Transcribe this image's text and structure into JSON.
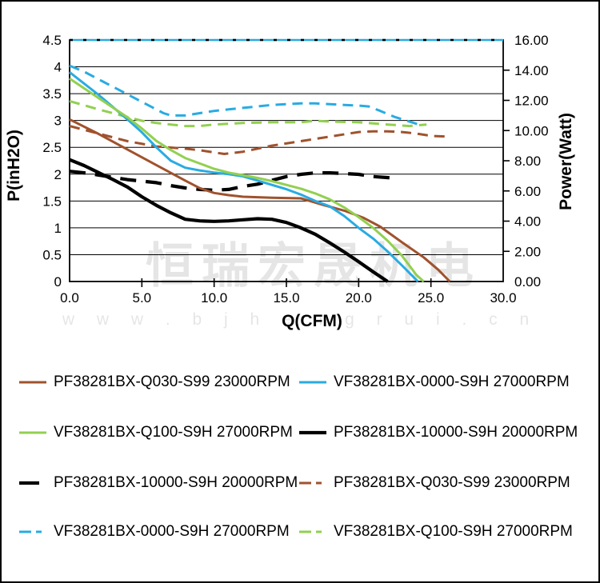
{
  "watermark": {
    "brand": "恒瑞宏晟机电",
    "url": "w w w . b j h e n g r u i . c n"
  },
  "chart_data": {
    "type": "line",
    "title": "",
    "grid": "horizontal",
    "x_axis": {
      "label": "Q(CFM)",
      "min": 0,
      "max": 30,
      "tick_labels": [
        "0.0",
        "5.0",
        "10.0",
        "15.0",
        "20.0",
        "25.0",
        "30.0"
      ]
    },
    "y_axis_left": {
      "label": "P(inH2O)",
      "min": 0,
      "max": 4.5,
      "tick_labels": [
        "0",
        "0.5",
        "1",
        "1.5",
        "2",
        "2.5",
        "3",
        "3.5",
        "4",
        "4.5"
      ]
    },
    "y_axis_right": {
      "label": "Power(Watt)",
      "min": 0,
      "max": 16,
      "tick_labels": [
        "0.00",
        "2.00",
        "4.00",
        "6.00",
        "8.00",
        "10.00",
        "12.00",
        "14.00",
        "16.00"
      ]
    },
    "series": [
      {
        "id": "power-limit-line",
        "name": "power limit 16.00W",
        "curve": "Power-Limit",
        "axis": "right",
        "color": "#29ABE2",
        "line": "limit",
        "x": [
          0,
          30
        ],
        "y": [
          16,
          16
        ]
      },
      {
        "id": "power-vf0000",
        "name": "VF38281BX-0000-S9H 27000RPM",
        "curve": "Power",
        "axis": "right",
        "color": "#29ABE2",
        "line": "dashed",
        "x": [
          0,
          1,
          2,
          3,
          4,
          5,
          6,
          6.5,
          7,
          8,
          9,
          10,
          11,
          12,
          13,
          14,
          15,
          16,
          17,
          18,
          19,
          20,
          20.7,
          21.5,
          22.5,
          23.5,
          24.3
        ],
        "y": [
          14.3,
          13.9,
          13.4,
          12.9,
          12.4,
          11.9,
          11.4,
          11.15,
          11.0,
          11.0,
          11.15,
          11.3,
          11.4,
          11.5,
          11.6,
          11.7,
          11.75,
          11.8,
          11.8,
          11.75,
          11.7,
          11.65,
          11.6,
          11.3,
          10.9,
          10.6,
          10.35
        ]
      },
      {
        "id": "power-vfq100",
        "name": "VF38281BX-Q100-S9H 27000RPM",
        "curve": "Power",
        "axis": "right",
        "color": "#92D050",
        "line": "dashed",
        "x": [
          0,
          2,
          4,
          5,
          6,
          7,
          8,
          9,
          10,
          12,
          14,
          16,
          17,
          18,
          20,
          22,
          23.5,
          24.7
        ],
        "y": [
          11.95,
          11.4,
          10.9,
          10.65,
          10.5,
          10.4,
          10.3,
          10.3,
          10.4,
          10.5,
          10.55,
          10.55,
          10.65,
          10.6,
          10.55,
          10.4,
          10.3,
          10.4
        ]
      },
      {
        "id": "power-pfq030",
        "name": "PF38281BX-Q030-S99 23000RPM",
        "curve": "Power",
        "axis": "right",
        "color": "#A0522D",
        "line": "dashed",
        "x": [
          0,
          2,
          4,
          6,
          8,
          9,
          10,
          10.7,
          12,
          14,
          16,
          18,
          20,
          21,
          22,
          23,
          24,
          25,
          26.1
        ],
        "y": [
          10.3,
          9.8,
          9.3,
          8.95,
          8.8,
          8.7,
          8.55,
          8.45,
          8.6,
          9.0,
          9.3,
          9.6,
          9.9,
          9.95,
          9.95,
          9.9,
          9.8,
          9.65,
          9.6
        ]
      },
      {
        "id": "power-pf10000",
        "name": "PF38281BX-10000-S9H 20000RPM",
        "curve": "Power",
        "axis": "right",
        "color": "#000000",
        "line": "dashed",
        "x": [
          0,
          1,
          2,
          3,
          4,
          5,
          6,
          7,
          8,
          9,
          10,
          11,
          12,
          13,
          14,
          15,
          16,
          17,
          18,
          19,
          20,
          21,
          22.5
        ],
        "y": [
          7.3,
          7.2,
          7.05,
          6.9,
          6.75,
          6.65,
          6.55,
          6.35,
          6.2,
          6.1,
          6.05,
          6.1,
          6.3,
          6.45,
          6.7,
          6.95,
          7.1,
          7.2,
          7.2,
          7.15,
          7.1,
          6.95,
          6.85
        ]
      },
      {
        "id": "pq-pfq030",
        "name": "PF38281BX-Q030-S99 23000RPM",
        "curve": "P-Q",
        "axis": "left",
        "color": "#A0522D",
        "line": "solid",
        "x": [
          0,
          2,
          4,
          6,
          8,
          9,
          10,
          11,
          12,
          14,
          16,
          17.5,
          19,
          20.3,
          21.5,
          23,
          24.5,
          25.5,
          26.3
        ],
        "y": [
          3.02,
          2.75,
          2.46,
          2.17,
          1.88,
          1.74,
          1.65,
          1.61,
          1.58,
          1.56,
          1.55,
          1.43,
          1.32,
          1.19,
          1.02,
          0.73,
          0.45,
          0.22,
          0
        ]
      },
      {
        "id": "pq-vf0000",
        "name": "VF38281BX-0000-S9H 27000RPM",
        "curve": "P-Q",
        "axis": "left",
        "color": "#29ABE2",
        "line": "solid",
        "x": [
          0,
          2,
          4,
          5,
          6,
          7,
          8,
          9,
          10,
          11,
          12,
          13,
          14,
          15,
          16,
          17,
          18,
          19,
          20,
          21,
          22,
          23,
          24.1
        ],
        "y": [
          3.9,
          3.48,
          3.02,
          2.78,
          2.5,
          2.25,
          2.12,
          2.07,
          2.03,
          2.0,
          1.96,
          1.88,
          1.8,
          1.72,
          1.62,
          1.5,
          1.4,
          1.22,
          1.0,
          0.8,
          0.56,
          0.3,
          0
        ]
      },
      {
        "id": "pq-vfq100",
        "name": "VF38281BX-Q100-S9H 27000RPM",
        "curve": "P-Q",
        "axis": "left",
        "color": "#92D050",
        "line": "solid",
        "x": [
          0,
          2,
          4,
          5,
          6,
          7,
          8,
          9,
          10,
          11,
          12,
          13,
          14,
          15,
          16,
          17,
          18,
          19,
          20,
          21,
          22,
          23,
          24,
          24.5
        ],
        "y": [
          3.78,
          3.42,
          3.06,
          2.85,
          2.62,
          2.45,
          2.3,
          2.2,
          2.1,
          2.03,
          1.98,
          1.93,
          1.87,
          1.8,
          1.73,
          1.64,
          1.53,
          1.38,
          1.2,
          1.0,
          0.76,
          0.48,
          0.12,
          0
        ]
      },
      {
        "id": "pq-pf10000",
        "name": "PF38281BX-10000-S9H 20000RPM",
        "curve": "P-Q",
        "axis": "left",
        "color": "#000000",
        "line": "solid",
        "x": [
          0,
          1,
          2,
          3,
          4,
          5,
          6,
          7,
          8,
          9,
          10,
          11,
          12,
          13,
          14,
          15,
          16,
          17,
          18,
          19,
          20,
          21,
          22
        ],
        "y": [
          2.27,
          2.16,
          2.03,
          1.9,
          1.76,
          1.58,
          1.42,
          1.28,
          1.16,
          1.13,
          1.12,
          1.13,
          1.15,
          1.17,
          1.16,
          1.1,
          1.0,
          0.88,
          0.72,
          0.55,
          0.37,
          0.18,
          0
        ]
      }
    ],
    "legend": {
      "position": "bottom",
      "items": [
        {
          "label": "PF38281BX-Q030-S99 23000RPM",
          "color": "#A0522D",
          "style": "solid",
          "row": 0,
          "col": 0
        },
        {
          "label": "VF38281BX-0000-S9H 27000RPM",
          "color": "#29ABE2",
          "style": "solid",
          "row": 0,
          "col": 1
        },
        {
          "label": "VF38281BX-Q100-S9H 27000RPM",
          "color": "#92D050",
          "style": "solid",
          "row": 1,
          "col": 0
        },
        {
          "label": "PF38281BX-10000-S9H 20000RPM",
          "color": "#000000",
          "style": "solid-thick",
          "row": 1,
          "col": 1
        },
        {
          "label": "PF38281BX-10000-S9H 20000RPM",
          "color": "#000000",
          "style": "dash-thick",
          "row": 2,
          "col": 0
        },
        {
          "label": "PF38281BX-Q030-S99 23000RPM",
          "color": "#A0522D",
          "style": "dash",
          "row": 2,
          "col": 1
        },
        {
          "label": "VF38281BX-0000-S9H 27000RPM",
          "color": "#29ABE2",
          "style": "dash",
          "row": 3,
          "col": 0
        },
        {
          "label": "VF38281BX-Q100-S9H 27000RPM",
          "color": "#92D050",
          "style": "dash",
          "row": 3,
          "col": 1
        }
      ]
    }
  }
}
